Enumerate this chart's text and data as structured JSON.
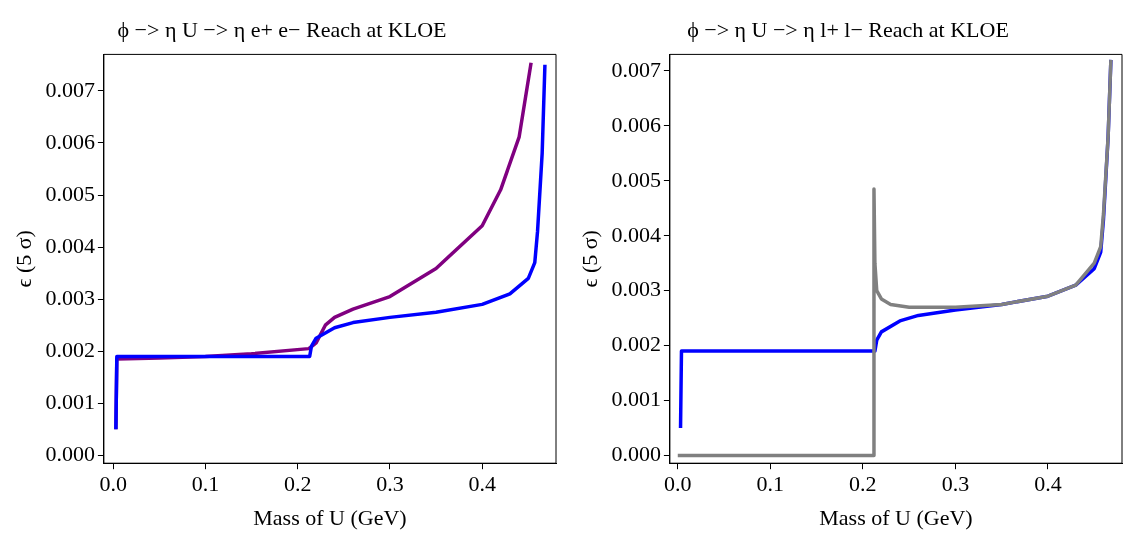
{
  "chart_data": [
    {
      "type": "line",
      "title": "ϕ −> η U −> η e+ e− Reach at KLOE",
      "xlabel": "Mass of U (GeV)",
      "ylabel": "ϵ (5 σ)",
      "grid": false,
      "legend": false,
      "xlim": [
        -0.01,
        0.48
      ],
      "ylim": [
        -0.00015,
        0.0077
      ],
      "xticks": [
        {
          "value": 0,
          "label": "0.0"
        },
        {
          "value": 0.1,
          "label": "0.1"
        },
        {
          "value": 0.2,
          "label": "0.2"
        },
        {
          "value": 0.3,
          "label": "0.3"
        },
        {
          "value": 0.4,
          "label": "0.4"
        }
      ],
      "yticks": [
        {
          "value": 0,
          "label": "0.000"
        },
        {
          "value": 0.001,
          "label": "0.001"
        },
        {
          "value": 0.002,
          "label": "0.002"
        },
        {
          "value": 0.003,
          "label": "0.003"
        },
        {
          "value": 0.004,
          "label": "0.004"
        },
        {
          "value": 0.005,
          "label": "0.005"
        },
        {
          "value": 0.006,
          "label": "0.006"
        },
        {
          "value": 0.007,
          "label": "0.007"
        }
      ],
      "series": [
        {
          "color": "#800080",
          "x": [
            0.003,
            0.004,
            0.05,
            0.1,
            0.15,
            0.212,
            0.213,
            0.22,
            0.23,
            0.24,
            0.26,
            0.3,
            0.35,
            0.4,
            0.42,
            0.44,
            0.453
          ],
          "values": [
            0.0005,
            0.00185,
            0.00187,
            0.0019,
            0.00195,
            0.00205,
            0.00206,
            0.00216,
            0.0025,
            0.00265,
            0.00281,
            0.00305,
            0.00359,
            0.00441,
            0.0051,
            0.00611,
            0.00754
          ]
        },
        {
          "color": "#0000ff",
          "x": [
            0.003,
            0.004,
            0.1,
            0.212,
            0.213,
            0.215,
            0.22,
            0.24,
            0.26,
            0.3,
            0.35,
            0.4,
            0.43,
            0.45,
            0.457,
            0.46,
            0.465,
            0.468
          ],
          "values": [
            0.0005,
            0.0019,
            0.0019,
            0.0019,
            0.0019,
            0.0021,
            0.00225,
            0.00245,
            0.00255,
            0.00265,
            0.00275,
            0.0029,
            0.0031,
            0.0034,
            0.0037,
            0.0043,
            0.0058,
            0.0075
          ]
        }
      ]
    },
    {
      "type": "line",
      "title": "ϕ −> η U −> η l+ l− Reach at KLOE",
      "xlabel": "Mass of U (GeV)",
      "ylabel": "ϵ (5 σ)",
      "grid": false,
      "legend": false,
      "xlim": [
        -0.0085,
        0.48
      ],
      "ylim": [
        -0.00014,
        0.0073
      ],
      "xticks": [
        {
          "value": 0,
          "label": "0.0"
        },
        {
          "value": 0.1,
          "label": "0.1"
        },
        {
          "value": 0.2,
          "label": "0.2"
        },
        {
          "value": 0.3,
          "label": "0.3"
        },
        {
          "value": 0.4,
          "label": "0.4"
        }
      ],
      "yticks": [
        {
          "value": 0,
          "label": "0.000"
        },
        {
          "value": 0.001,
          "label": "0.001"
        },
        {
          "value": 0.002,
          "label": "0.002"
        },
        {
          "value": 0.003,
          "label": "0.003"
        },
        {
          "value": 0.004,
          "label": "0.004"
        },
        {
          "value": 0.005,
          "label": "0.005"
        },
        {
          "value": 0.006,
          "label": "0.006"
        },
        {
          "value": 0.007,
          "label": "0.007"
        }
      ],
      "series": [
        {
          "color": "#0000ff",
          "x": [
            0.003,
            0.004,
            0.1,
            0.212,
            0.213,
            0.215,
            0.22,
            0.24,
            0.26,
            0.3,
            0.35,
            0.4,
            0.43,
            0.45,
            0.457,
            0.46,
            0.465,
            0.468
          ],
          "values": [
            0.0005,
            0.0019,
            0.0019,
            0.0019,
            0.0019,
            0.0021,
            0.00225,
            0.00245,
            0.00255,
            0.00265,
            0.00275,
            0.0029,
            0.0031,
            0.0034,
            0.0037,
            0.0043,
            0.0058,
            0.0072
          ]
        },
        {
          "color": "#808080",
          "x": [
            0,
            0.1,
            0.212,
            0.212,
            0.213,
            0.215,
            0.22,
            0.23,
            0.25,
            0.3,
            0.35,
            0.4,
            0.43,
            0.45,
            0.457,
            0.46,
            0.465,
            0.468
          ],
          "values": [
            0,
            0,
            0,
            0.00485,
            0.0035,
            0.003,
            0.00285,
            0.00275,
            0.0027,
            0.0027,
            0.00275,
            0.0029,
            0.0031,
            0.0035,
            0.0038,
            0.0044,
            0.0058,
            0.0072
          ]
        }
      ]
    }
  ]
}
